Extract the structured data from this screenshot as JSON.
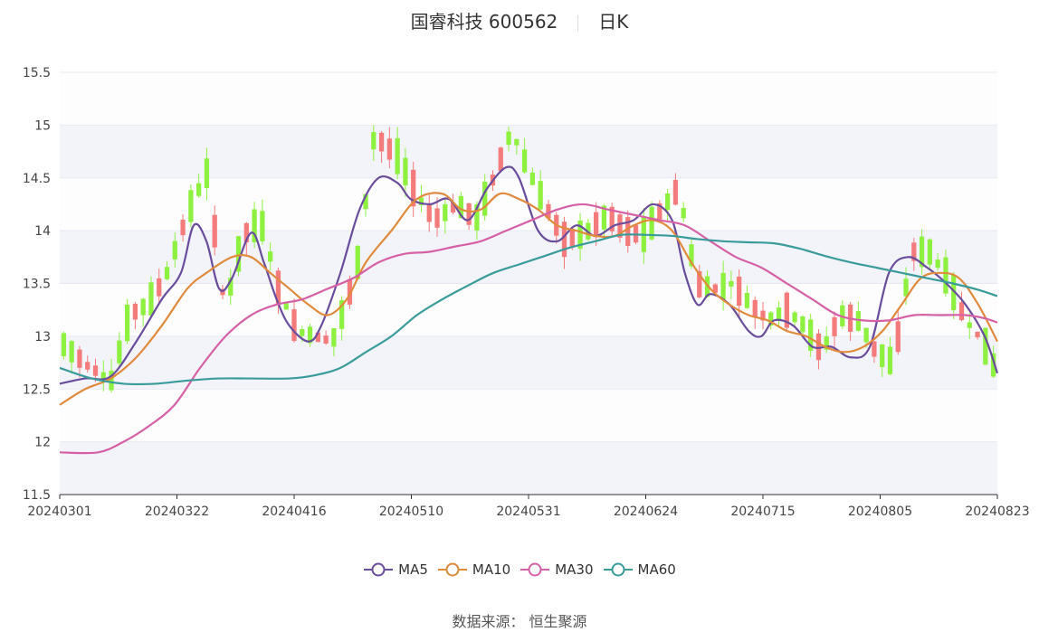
{
  "header": {
    "stock": "国睿科技 600562",
    "period": "日K"
  },
  "source": {
    "label": "数据来源：",
    "value": "恒生聚源"
  },
  "legend": [
    {
      "name": "MA5",
      "color": "#6a4c9c"
    },
    {
      "name": "MA10",
      "color": "#e08a3c"
    },
    {
      "name": "MA30",
      "color": "#d660a6"
    },
    {
      "name": "MA60",
      "color": "#3a9b9b"
    }
  ],
  "colors": {
    "up": "#f47b7b",
    "down": "#8ef03f",
    "grid": "#e6e9f0",
    "band": "#f3f4fa",
    "axis": "#333333"
  },
  "chart_data": {
    "type": "candlestick",
    "ylim": [
      11.5,
      15.5
    ],
    "yticks": [
      "15.5",
      "15",
      "14.5",
      "14",
      "13.5",
      "13",
      "12.5",
      "12",
      "11.5"
    ],
    "xticks": [
      "20240301",
      "20240322",
      "20240416",
      "20240510",
      "20240531",
      "20240624",
      "20240715",
      "20240805",
      "20240823"
    ],
    "candles_count": 118,
    "candle_anchors": [
      [
        0,
        12.92
      ],
      [
        4,
        12.72
      ],
      [
        8,
        12.58
      ],
      [
        11,
        13.2
      ],
      [
        14,
        13.3
      ],
      [
        17,
        13.55
      ],
      [
        21,
        14.2
      ],
      [
        24,
        14.55
      ],
      [
        27,
        13.25
      ],
      [
        30,
        13.95
      ],
      [
        33,
        14.1
      ],
      [
        36,
        13.45
      ],
      [
        39,
        13.05
      ],
      [
        42,
        13.0
      ],
      [
        45,
        12.95
      ],
      [
        49,
        13.6
      ],
      [
        52,
        14.9
      ],
      [
        56,
        14.7
      ],
      [
        59,
        14.35
      ],
      [
        62,
        14.1
      ],
      [
        66,
        14.25
      ],
      [
        69,
        14.1
      ],
      [
        72,
        14.5
      ],
      [
        75,
        14.95
      ],
      [
        78,
        14.55
      ],
      [
        81,
        14.2
      ],
      [
        84,
        13.9
      ],
      [
        88,
        14.0
      ],
      [
        91,
        14.15
      ],
      [
        94,
        14.0
      ],
      [
        97,
        13.95
      ],
      [
        100,
        14.2
      ],
      [
        103,
        14.4
      ],
      [
        106,
        13.5
      ],
      [
        109,
        13.45
      ],
      [
        112,
        13.5
      ],
      [
        115,
        13.3
      ],
      [
        118,
        13.15
      ],
      [
        121,
        13.25
      ],
      [
        124,
        13.1
      ],
      [
        127,
        12.85
      ],
      [
        130,
        13.2
      ],
      [
        133,
        13.15
      ],
      [
        136,
        12.85
      ],
      [
        139,
        12.75
      ],
      [
        142,
        13.8
      ],
      [
        145,
        13.8
      ],
      [
        148,
        13.55
      ],
      [
        151,
        13.15
      ],
      [
        154,
        12.95
      ],
      [
        157,
        12.55
      ]
    ],
    "series": [
      {
        "name": "MA5",
        "values": [
          [
            0,
            12.55
          ],
          [
            4,
            12.6
          ],
          [
            8,
            12.62
          ],
          [
            12,
            12.95
          ],
          [
            16,
            13.35
          ],
          [
            19,
            13.6
          ],
          [
            21,
            14.05
          ],
          [
            23,
            13.9
          ],
          [
            25,
            13.45
          ],
          [
            27,
            13.55
          ],
          [
            30,
            13.98
          ],
          [
            32,
            13.7
          ],
          [
            34,
            13.35
          ],
          [
            36,
            13.1
          ],
          [
            39,
            12.95
          ],
          [
            41,
            13.1
          ],
          [
            44,
            13.6
          ],
          [
            47,
            14.2
          ],
          [
            50,
            14.5
          ],
          [
            53,
            14.45
          ],
          [
            55,
            14.3
          ],
          [
            58,
            14.25
          ],
          [
            61,
            14.3
          ],
          [
            64,
            14.1
          ],
          [
            67,
            14.4
          ],
          [
            70,
            14.6
          ],
          [
            72,
            14.5
          ],
          [
            75,
            14.0
          ],
          [
            78,
            13.9
          ],
          [
            81,
            14.05
          ],
          [
            84,
            13.95
          ],
          [
            87,
            14.05
          ],
          [
            90,
            14.1
          ],
          [
            93,
            14.25
          ],
          [
            96,
            14.1
          ],
          [
            98,
            13.6
          ],
          [
            100,
            13.3
          ],
          [
            102,
            13.4
          ],
          [
            105,
            13.3
          ],
          [
            108,
            13.05
          ],
          [
            110,
            13.0
          ],
          [
            112,
            13.15
          ],
          [
            115,
            13.1
          ],
          [
            118,
            12.9
          ],
          [
            121,
            12.9
          ],
          [
            124,
            12.8
          ],
          [
            127,
            12.9
          ],
          [
            130,
            13.6
          ],
          [
            133,
            13.75
          ],
          [
            136,
            13.65
          ],
          [
            139,
            13.5
          ],
          [
            142,
            13.3
          ],
          [
            145,
            13.0
          ],
          [
            147,
            12.65
          ]
        ]
      },
      {
        "name": "MA10",
        "values": [
          [
            0,
            12.35
          ],
          [
            4,
            12.5
          ],
          [
            8,
            12.6
          ],
          [
            12,
            12.8
          ],
          [
            16,
            13.1
          ],
          [
            20,
            13.45
          ],
          [
            23,
            13.6
          ],
          [
            27,
            13.75
          ],
          [
            30,
            13.75
          ],
          [
            33,
            13.6
          ],
          [
            36,
            13.45
          ],
          [
            39,
            13.3
          ],
          [
            42,
            13.2
          ],
          [
            45,
            13.35
          ],
          [
            48,
            13.7
          ],
          [
            52,
            14.0
          ],
          [
            56,
            14.3
          ],
          [
            60,
            14.35
          ],
          [
            63,
            14.2
          ],
          [
            66,
            14.2
          ],
          [
            69,
            14.35
          ],
          [
            72,
            14.3
          ],
          [
            75,
            14.2
          ],
          [
            78,
            14.05
          ],
          [
            81,
            14.0
          ],
          [
            84,
            13.95
          ],
          [
            87,
            13.95
          ],
          [
            90,
            14.05
          ],
          [
            93,
            14.1
          ],
          [
            96,
            14.0
          ],
          [
            99,
            13.7
          ],
          [
            102,
            13.45
          ],
          [
            105,
            13.3
          ],
          [
            108,
            13.2
          ],
          [
            111,
            13.15
          ],
          [
            114,
            13.05
          ],
          [
            117,
            13.0
          ],
          [
            120,
            12.9
          ],
          [
            123,
            12.85
          ],
          [
            126,
            12.9
          ],
          [
            129,
            13.05
          ],
          [
            132,
            13.3
          ],
          [
            135,
            13.55
          ],
          [
            138,
            13.6
          ],
          [
            141,
            13.55
          ],
          [
            144,
            13.3
          ],
          [
            147,
            12.95
          ]
        ]
      },
      {
        "name": "MA30",
        "values": [
          [
            0,
            11.9
          ],
          [
            6,
            11.9
          ],
          [
            10,
            12.0
          ],
          [
            14,
            12.15
          ],
          [
            18,
            12.35
          ],
          [
            22,
            12.7
          ],
          [
            26,
            13.0
          ],
          [
            30,
            13.2
          ],
          [
            34,
            13.3
          ],
          [
            38,
            13.35
          ],
          [
            42,
            13.45
          ],
          [
            46,
            13.55
          ],
          [
            50,
            13.7
          ],
          [
            54,
            13.78
          ],
          [
            58,
            13.8
          ],
          [
            62,
            13.85
          ],
          [
            66,
            13.9
          ],
          [
            70,
            14.0
          ],
          [
            74,
            14.1
          ],
          [
            78,
            14.2
          ],
          [
            82,
            14.25
          ],
          [
            86,
            14.2
          ],
          [
            90,
            14.15
          ],
          [
            94,
            14.1
          ],
          [
            98,
            14.05
          ],
          [
            102,
            13.9
          ],
          [
            106,
            13.75
          ],
          [
            110,
            13.65
          ],
          [
            114,
            13.5
          ],
          [
            118,
            13.35
          ],
          [
            122,
            13.2
          ],
          [
            126,
            13.15
          ],
          [
            130,
            13.15
          ],
          [
            134,
            13.2
          ],
          [
            138,
            13.2
          ],
          [
            142,
            13.2
          ],
          [
            145,
            13.17
          ],
          [
            147,
            13.13
          ]
        ]
      },
      {
        "name": "MA60",
        "values": [
          [
            0,
            12.7
          ],
          [
            5,
            12.6
          ],
          [
            10,
            12.55
          ],
          [
            15,
            12.55
          ],
          [
            20,
            12.58
          ],
          [
            25,
            12.6
          ],
          [
            30,
            12.6
          ],
          [
            36,
            12.6
          ],
          [
            40,
            12.63
          ],
          [
            44,
            12.7
          ],
          [
            48,
            12.85
          ],
          [
            52,
            13.0
          ],
          [
            56,
            13.2
          ],
          [
            60,
            13.35
          ],
          [
            64,
            13.48
          ],
          [
            68,
            13.6
          ],
          [
            72,
            13.68
          ],
          [
            76,
            13.76
          ],
          [
            80,
            13.84
          ],
          [
            84,
            13.9
          ],
          [
            88,
            13.96
          ],
          [
            92,
            13.96
          ],
          [
            96,
            13.95
          ],
          [
            100,
            13.92
          ],
          [
            104,
            13.9
          ],
          [
            108,
            13.89
          ],
          [
            112,
            13.88
          ],
          [
            116,
            13.83
          ],
          [
            120,
            13.76
          ],
          [
            124,
            13.7
          ],
          [
            128,
            13.65
          ],
          [
            132,
            13.6
          ],
          [
            136,
            13.55
          ],
          [
            140,
            13.5
          ],
          [
            144,
            13.44
          ],
          [
            147,
            13.38
          ]
        ]
      }
    ]
  }
}
